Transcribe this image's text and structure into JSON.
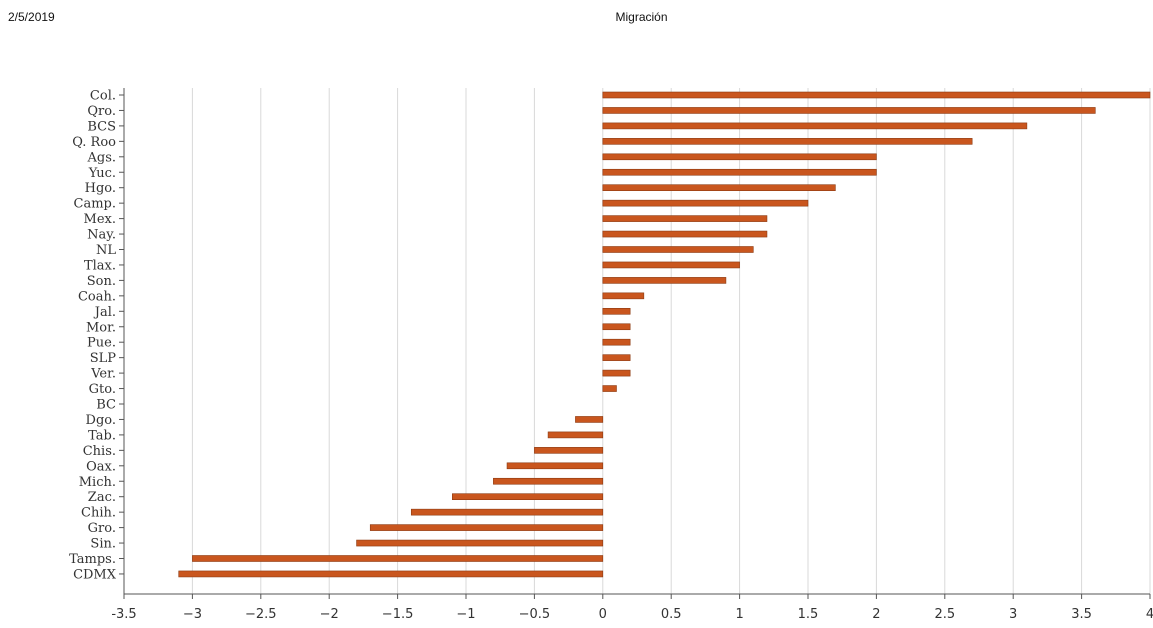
{
  "header": {
    "date": "2/5/2019",
    "title": "Migración"
  },
  "colors": {
    "bar": "#C9561E",
    "bar_edge": "#8B3A12",
    "grid": "#d9d9d9",
    "axis": "#555555"
  },
  "chart_data": {
    "type": "bar",
    "orientation": "horizontal",
    "title": "Migración",
    "xlim": [
      -3.5,
      4
    ],
    "xticks": [
      -3.5,
      -3,
      -2.5,
      -2,
      -1.5,
      -1,
      -0.5,
      0,
      0.5,
      1,
      1.5,
      2,
      2.5,
      3,
      3.5,
      4
    ],
    "xtick_labels": [
      "-3.5",
      "−3",
      "−2.5",
      "−2",
      "−1.5",
      "−1",
      "−0.5",
      "0",
      "0.5",
      "1",
      "1.5",
      "2",
      "2.5",
      "3",
      "3.5",
      "4"
    ],
    "grid": "vertical",
    "categories": [
      "Col.",
      "Qro.",
      "BCS",
      "Q. Roo",
      "Ags.",
      "Yuc.",
      "Hgo.",
      "Camp.",
      "Mex.",
      "Nay.",
      "NL",
      "Tlax.",
      "Son.",
      "Coah.",
      "Jal.",
      "Mor.",
      "Pue.",
      "SLP",
      "Ver.",
      "Gto.",
      "BC",
      "Dgo.",
      "Tab.",
      "Chis.",
      "Oax.",
      "Mich.",
      "Zac.",
      "Chih.",
      "Gro.",
      "Sin.",
      "Tamps.",
      "CDMX"
    ],
    "values": [
      4.0,
      3.6,
      3.1,
      2.7,
      2.0,
      2.0,
      1.7,
      1.5,
      1.2,
      1.2,
      1.1,
      1.0,
      0.9,
      0.3,
      0.2,
      0.2,
      0.2,
      0.2,
      0.2,
      0.1,
      0.0,
      -0.2,
      -0.4,
      -0.5,
      -0.7,
      -0.8,
      -1.1,
      -1.4,
      -1.7,
      -1.8,
      -3.0,
      -3.1
    ]
  }
}
